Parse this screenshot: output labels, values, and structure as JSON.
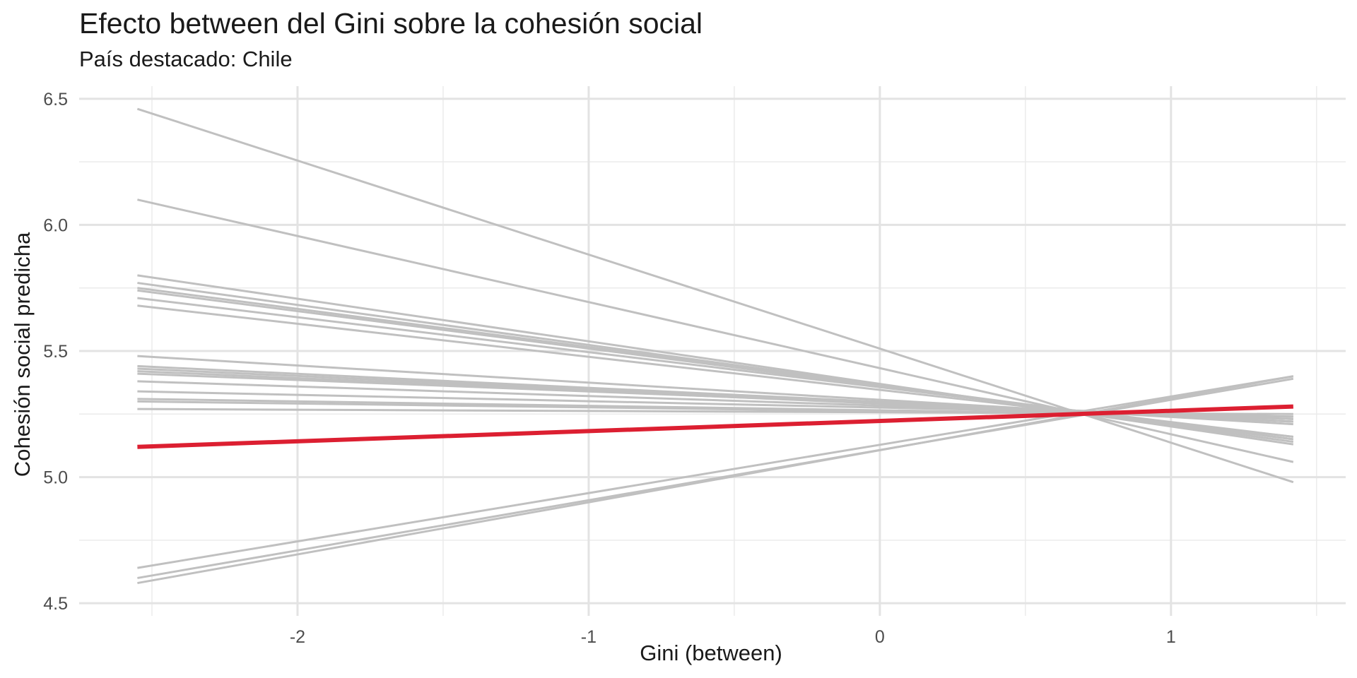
{
  "chart_data": {
    "type": "line",
    "title": "Efecto between del Gini sobre la cohesión social",
    "subtitle": "País destacado: Chile",
    "xlabel": "Gini (between)",
    "ylabel": "Cohesión social predicha",
    "xlim": [
      -2.75,
      1.6
    ],
    "ylim": [
      4.45,
      6.55
    ],
    "xticks": [
      -2,
      -1,
      0,
      1
    ],
    "xtick_labels": [
      "-2",
      "-1",
      "0",
      "1"
    ],
    "yticks": [
      4.5,
      5.0,
      5.5,
      6.0,
      6.5
    ],
    "ytick_labels": [
      "4.5",
      "5.0",
      "5.5",
      "6.0",
      "6.5"
    ],
    "x_range": [
      -2.55,
      1.42
    ],
    "grid": true,
    "background_series_color": "#c0c0c0",
    "highlight_color": "#dc1f31",
    "series": [
      {
        "values": [
          6.46,
          4.98
        ]
      },
      {
        "values": [
          6.1,
          5.06
        ]
      },
      {
        "values": [
          5.8,
          5.13
        ]
      },
      {
        "values": [
          5.77,
          5.14
        ]
      },
      {
        "values": [
          5.75,
          5.15
        ]
      },
      {
        "values": [
          5.74,
          5.15
        ]
      },
      {
        "values": [
          5.71,
          5.16
        ]
      },
      {
        "values": [
          5.68,
          5.16
        ]
      },
      {
        "values": [
          5.48,
          5.21
        ]
      },
      {
        "values": [
          5.44,
          5.22
        ]
      },
      {
        "values": [
          5.43,
          5.22
        ]
      },
      {
        "values": [
          5.42,
          5.22
        ]
      },
      {
        "values": [
          5.41,
          5.23
        ]
      },
      {
        "values": [
          5.38,
          5.23
        ]
      },
      {
        "values": [
          5.34,
          5.24
        ]
      },
      {
        "values": [
          5.31,
          5.24
        ]
      },
      {
        "values": [
          5.3,
          5.24
        ]
      },
      {
        "values": [
          5.27,
          5.25
        ]
      },
      {
        "values": [
          4.64,
          5.4
        ]
      },
      {
        "values": [
          4.6,
          5.39
        ]
      },
      {
        "values": [
          4.58,
          5.4
        ]
      },
      {
        "name": "Chile",
        "highlight": true,
        "values": [
          5.12,
          5.28
        ]
      }
    ]
  }
}
